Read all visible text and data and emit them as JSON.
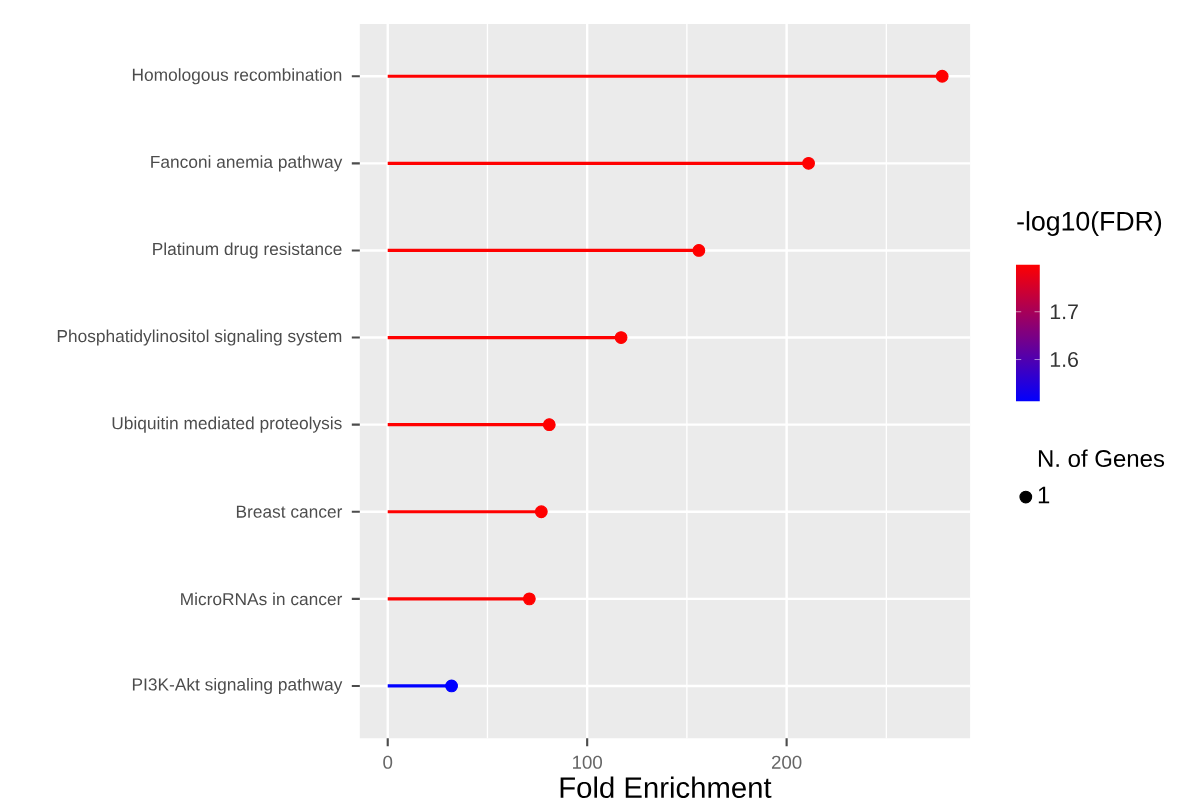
{
  "chart_data": {
    "type": "lollipop",
    "orientation": "horizontal",
    "categories": [
      "Homologous recombination",
      "Fanconi anemia pathway",
      "Platinum drug resistance",
      "Phosphatidylinositol signaling system",
      "Ubiquitin mediated proteolysis",
      "Breast cancer",
      "MicroRNAs in cancer",
      "PI3K-Akt signaling pathway"
    ],
    "values": [
      278,
      211,
      156,
      117,
      81,
      77,
      71,
      32
    ],
    "cvalues": [
      1.8,
      1.8,
      1.8,
      1.8,
      1.8,
      1.8,
      1.8,
      1.51
    ],
    "colors": [
      "#ff0000",
      "#ff0000",
      "#ff0000",
      "#ff0000",
      "#ff0000",
      "#ff0000",
      "#ff0000",
      "#0000ff"
    ],
    "sizes": [
      1,
      1,
      1,
      1,
      1,
      1,
      1,
      1
    ],
    "size_legend": [
      1
    ],
    "xlabel": "Fold Enrichment",
    "clabel": "-log10(FDR)",
    "legend_title": "N. of Genes",
    "xlim": [
      -14,
      292
    ],
    "xticks": [
      0,
      100,
      200
    ],
    "clim": [
      1.51,
      1.8
    ],
    "cticks": [
      1.6,
      1.7
    ],
    "grid": true,
    "marker": "circle"
  }
}
